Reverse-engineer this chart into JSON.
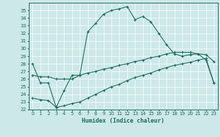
{
  "xlabel": "Humidex (Indice chaleur)",
  "bg_color": "#cde8e8",
  "line_color": "#1a6b5a",
  "xlim": [
    -0.5,
    23.5
  ],
  "ylim": [
    22,
    36
  ],
  "yticks": [
    22,
    23,
    24,
    25,
    26,
    27,
    28,
    29,
    30,
    31,
    32,
    33,
    34,
    35
  ],
  "xticks": [
    0,
    1,
    2,
    3,
    4,
    5,
    6,
    7,
    8,
    9,
    10,
    11,
    12,
    13,
    14,
    15,
    16,
    17,
    18,
    19,
    20,
    21,
    22,
    23
  ],
  "curve1_x": [
    0,
    1,
    2,
    3,
    4,
    5,
    6,
    7,
    8,
    9,
    10,
    11,
    12,
    13,
    14,
    15,
    16,
    17,
    18,
    19,
    20,
    21,
    22,
    23
  ],
  "curve1_y": [
    28.0,
    25.5,
    25.5,
    22.3,
    24.5,
    26.5,
    26.5,
    32.2,
    33.3,
    34.5,
    35.0,
    35.2,
    35.5,
    33.8,
    34.2,
    33.5,
    32.0,
    30.5,
    29.3,
    29.0,
    29.2,
    29.3,
    28.5,
    25.5
  ],
  "curve2_x": [
    0,
    1,
    2,
    3,
    4,
    5,
    6,
    7,
    8,
    9,
    10,
    11,
    12,
    13,
    14,
    15,
    16,
    17,
    18,
    19,
    20,
    21,
    22,
    23
  ],
  "curve2_y": [
    26.5,
    26.3,
    26.3,
    26.0,
    26.0,
    26.0,
    26.5,
    26.8,
    27.0,
    27.3,
    27.5,
    27.8,
    28.0,
    28.3,
    28.5,
    28.8,
    29.0,
    29.3,
    29.5,
    29.5,
    29.5,
    29.3,
    29.2,
    28.3
  ],
  "curve3_x": [
    0,
    1,
    2,
    3,
    4,
    5,
    6,
    7,
    8,
    9,
    10,
    11,
    12,
    13,
    14,
    15,
    16,
    17,
    18,
    19,
    20,
    21,
    22,
    23
  ],
  "curve3_y": [
    23.5,
    23.3,
    23.2,
    22.3,
    22.5,
    22.8,
    23.0,
    23.5,
    24.0,
    24.5,
    25.0,
    25.3,
    25.8,
    26.2,
    26.5,
    26.8,
    27.2,
    27.5,
    27.8,
    28.0,
    28.2,
    28.5,
    28.7,
    25.5
  ]
}
